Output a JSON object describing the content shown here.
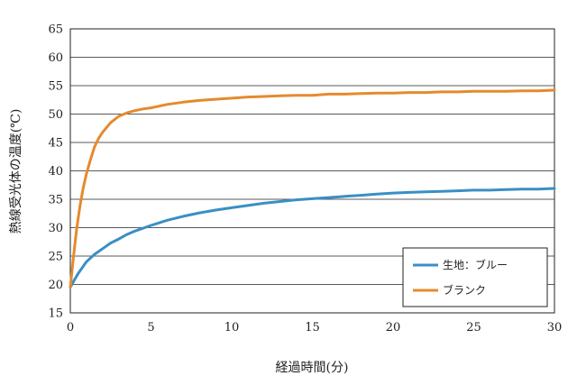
{
  "chart_data": {
    "type": "line",
    "title": "",
    "xlabel": "経過時間(分)",
    "ylabel": "熱線受光体の温度(℃)",
    "xlim": [
      0,
      30
    ],
    "ylim": [
      15,
      65
    ],
    "x_ticks": [
      0,
      5,
      10,
      15,
      20,
      25,
      30
    ],
    "y_ticks": [
      15,
      20,
      25,
      30,
      35,
      40,
      45,
      50,
      55,
      60,
      65
    ],
    "grid": "horizontal",
    "legend": "bottom-right",
    "series": [
      {
        "name": "生地：ブルー",
        "color": "#3a8fc4",
        "x": [
          0,
          0.25,
          0.5,
          1,
          1.5,
          2,
          2.5,
          3,
          3.5,
          4,
          5,
          6,
          7,
          8,
          9,
          10,
          11,
          12,
          13,
          14,
          15,
          16,
          17,
          18,
          19,
          20,
          21,
          22,
          23,
          24,
          25,
          26,
          27,
          28,
          29,
          30
        ],
        "y": [
          19.5,
          20.8,
          22.0,
          24.0,
          25.3,
          26.3,
          27.3,
          28.0,
          28.8,
          29.4,
          30.4,
          31.3,
          32.0,
          32.6,
          33.1,
          33.5,
          33.9,
          34.3,
          34.6,
          34.9,
          35.1,
          35.3,
          35.5,
          35.7,
          35.9,
          36.1,
          36.2,
          36.3,
          36.4,
          36.5,
          36.6,
          36.6,
          36.7,
          36.8,
          36.8,
          36.9
        ]
      },
      {
        "name": "ブランク",
        "color": "#e58a2e",
        "x": [
          0,
          0.2,
          0.4,
          0.6,
          0.8,
          1,
          1.25,
          1.5,
          1.75,
          2,
          2.5,
          3,
          3.5,
          4,
          4.5,
          5,
          6,
          7,
          8,
          9,
          10,
          11,
          12,
          13,
          14,
          15,
          16,
          17,
          18,
          19,
          20,
          21,
          22,
          23,
          24,
          25,
          26,
          27,
          28,
          29,
          30
        ],
        "y": [
          19.5,
          25.0,
          30.0,
          33.8,
          37.0,
          39.5,
          42.0,
          44.2,
          45.7,
          46.8,
          48.5,
          49.6,
          50.2,
          50.6,
          50.9,
          51.1,
          51.7,
          52.1,
          52.4,
          52.6,
          52.8,
          53.0,
          53.1,
          53.2,
          53.3,
          53.3,
          53.5,
          53.5,
          53.6,
          53.7,
          53.7,
          53.8,
          53.8,
          53.9,
          53.9,
          54.0,
          54.0,
          54.0,
          54.1,
          54.1,
          54.2
        ]
      }
    ]
  }
}
